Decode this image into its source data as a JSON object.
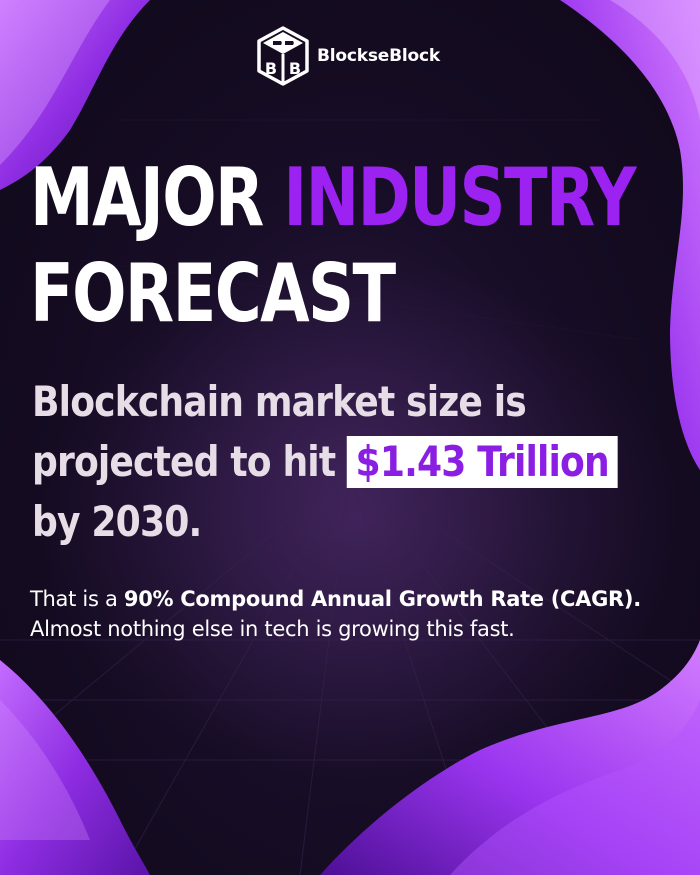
{
  "brand": {
    "name": "BlocksеBlock",
    "logo_letters": [
      "B",
      "B"
    ]
  },
  "headline": {
    "word1": "MAJOR",
    "word2": "INDUSTRY",
    "word3": "FORECAST"
  },
  "subhead": {
    "line1": "Blockchain market size is",
    "line2_prefix": "projected to hit",
    "highlight": "$1.43 Trillion",
    "line3": "by 2030."
  },
  "body": {
    "prefix": "That is a ",
    "emphasis": "90% Compound Annual Growth Rate (CAGR).",
    "closing": "Almost nothing else in tech is growing this fast."
  },
  "colors": {
    "accent_purple": "#9b22f0",
    "highlight_bg": "#ffffff",
    "highlight_text": "#8a1fe3",
    "background": "#170d26"
  }
}
